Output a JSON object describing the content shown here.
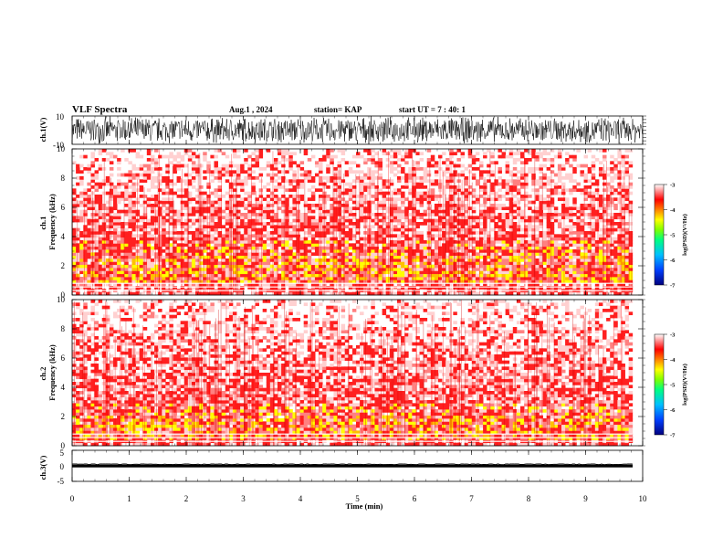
{
  "header": {
    "title": "VLF Spectra",
    "date": "Aug.1 , 2024",
    "station": "station= KAP",
    "start": "start UT = 7 : 40: 1"
  },
  "colors": {
    "axes": "#000000",
    "spectrogram_low": "#ffffff",
    "spectrogram_mid": "#ff2a2a",
    "spectrogram_high": "#ffff00",
    "colormap": [
      "#00007f",
      "#0040ff",
      "#00c0ff",
      "#00ff80",
      "#80ff00",
      "#ffff00",
      "#ff8000",
      "#ff0000",
      "#ffffff"
    ]
  },
  "chart_data": [
    {
      "type": "line",
      "name": "ch1-waveform",
      "ylabel": "ch.1(V)",
      "ylim": [
        -10,
        10
      ],
      "yticks": [
        "10",
        "-10"
      ],
      "xlim": [
        0,
        10
      ],
      "description_values": {
        "amplitude_range": [
          -10,
          10
        ]
      }
    },
    {
      "type": "heatmap",
      "name": "ch1-spectrogram",
      "ylabel": "ch.1\nFrequency (kHz)",
      "ylim": [
        0,
        10
      ],
      "yticks": [
        "0",
        "2",
        "4",
        "6",
        "8",
        "10"
      ],
      "xlim": [
        0,
        9.82
      ],
      "intense_band_khz": [
        0.8,
        3.8
      ],
      "gap_lines_khz": [
        0.3,
        0.55,
        0.8
      ],
      "colorbar": {
        "label": "log(PSD)(V²/Hz)",
        "range": [
          -7,
          -3
        ],
        "ticks": [
          "-3",
          "-4",
          "-5",
          "-6",
          "-7"
        ]
      }
    },
    {
      "type": "heatmap",
      "name": "ch2-spectrogram",
      "ylabel": "ch.2\nFrequency (kHz)",
      "ylim": [
        0,
        10
      ],
      "yticks": [
        "0",
        "2",
        "4",
        "6",
        "8",
        "10"
      ],
      "xlim": [
        0,
        9.82
      ],
      "intense_band_khz": [
        0.5,
        3.0
      ],
      "gap_lines_khz": [
        0.3,
        0.55,
        0.8
      ],
      "colorbar": {
        "label": "log(PSD)(V²/Hz)",
        "range": [
          -7,
          -3
        ],
        "ticks": [
          "-3",
          "-4",
          "-5",
          "-6",
          "-7"
        ]
      }
    },
    {
      "type": "line",
      "name": "ch3-waveform",
      "ylabel": "ch.3(V)",
      "ylim": [
        -5,
        5
      ],
      "yticks": [
        "5",
        "0",
        "-5"
      ],
      "xlim": [
        0,
        10
      ],
      "description_values": {
        "center_V": 0,
        "band_halfwidth_V": 0.5
      }
    }
  ],
  "xaxis": {
    "label": "Time (min)",
    "ticks": [
      "0",
      "1",
      "2",
      "3",
      "4",
      "5",
      "6",
      "7",
      "8",
      "9",
      "10"
    ],
    "range": [
      0,
      10
    ]
  }
}
